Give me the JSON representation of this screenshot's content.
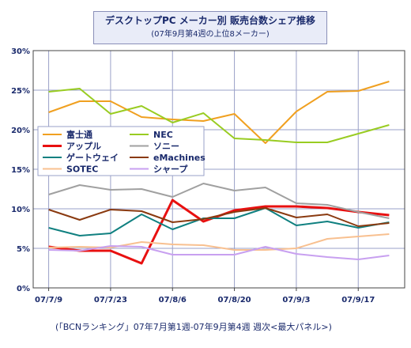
{
  "header": {
    "title": "デスクトップPC メーカー別 販売台数シェア推移",
    "subtitle": "(07年9月第4週の上位8メーカー)"
  },
  "footer": {
    "source": "(「BCNランキング」07年7月第1週-07年9月第4週 週次<最大パネル>)"
  },
  "chart_data": {
    "type": "line",
    "title": "デスクトップPC メーカー別 販売台数シェア推移",
    "subtitle": "(07年9月第4週の上位8メーカー)",
    "x": [
      "07/7/9",
      "07/7/16",
      "07/7/23",
      "07/7/30",
      "07/8/6",
      "07/8/13",
      "07/8/20",
      "07/8/27",
      "07/9/3",
      "07/9/10",
      "07/9/17",
      "07/9/24"
    ],
    "x_tick_labels": [
      "07/7/9",
      "07/7/23",
      "07/8/6",
      "07/8/20",
      "07/9/3",
      "07/9/17"
    ],
    "x_tick_every": 2,
    "y_ticks": [
      "0%",
      "5%",
      "10%",
      "15%",
      "20%",
      "25%",
      "30%"
    ],
    "ylim": [
      0,
      30
    ],
    "y_unit": "%",
    "grid": true,
    "legend_position": "left-middle",
    "series": [
      {
        "name": "富士通",
        "color": "#f0a020",
        "values": [
          22.2,
          23.6,
          23.6,
          21.6,
          21.3,
          21.1,
          22.0,
          18.3,
          22.3,
          24.8,
          24.9,
          26.1
        ]
      },
      {
        "name": "NEC",
        "color": "#99cc22",
        "values": [
          24.8,
          25.2,
          22.0,
          23.0,
          20.9,
          22.1,
          18.9,
          18.7,
          18.4,
          18.4,
          19.5,
          20.6
        ]
      },
      {
        "name": "アップル",
        "color": "#e81010",
        "values": [
          5.2,
          4.7,
          4.7,
          3.1,
          11.1,
          8.4,
          9.8,
          10.3,
          10.3,
          10.1,
          9.6,
          9.2
        ],
        "width": 3
      },
      {
        "name": "ソニー",
        "color": "#a0a0a0",
        "values": [
          11.8,
          13.0,
          12.4,
          12.5,
          11.5,
          13.2,
          12.3,
          12.7,
          10.7,
          10.5,
          9.6,
          8.8
        ]
      },
      {
        "name": "ゲートウェイ",
        "color": "#108080",
        "values": [
          7.6,
          6.6,
          6.9,
          9.3,
          7.4,
          8.8,
          8.8,
          10.1,
          7.9,
          8.4,
          7.6,
          8.3
        ]
      },
      {
        "name": "eMachines",
        "color": "#8a3a10",
        "values": [
          9.9,
          8.6,
          9.9,
          9.7,
          8.3,
          8.7,
          9.6,
          10.1,
          8.9,
          9.3,
          7.8,
          8.2
        ]
      },
      {
        "name": "SOTEC",
        "color": "#f8c090",
        "values": [
          5.1,
          5.2,
          5.1,
          5.8,
          5.5,
          5.4,
          4.8,
          4.8,
          5.0,
          6.2,
          6.5,
          6.8
        ]
      },
      {
        "name": "シャープ",
        "color": "#c8a0f0",
        "values": [
          4.8,
          4.7,
          5.3,
          5.2,
          4.2,
          4.2,
          4.2,
          5.2,
          4.3,
          3.9,
          3.6,
          4.1
        ]
      }
    ]
  }
}
